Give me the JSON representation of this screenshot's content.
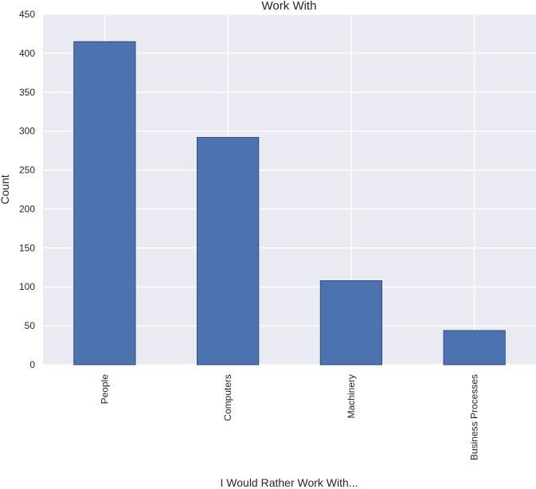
{
  "chart_data": {
    "type": "bar",
    "title": "Work With",
    "xlabel": "I Would Rather Work With...",
    "ylabel": "Count",
    "categories": [
      "People",
      "Computers",
      "Machinery",
      "Business Processes"
    ],
    "values": [
      415,
      292,
      108,
      44
    ],
    "ylim": [
      0,
      450
    ],
    "yticks": [
      0,
      50,
      100,
      150,
      200,
      250,
      300,
      350,
      400,
      450
    ],
    "bar_color": "#4c72b0",
    "background_color": "#eaeaf2",
    "grid": true,
    "legend": "none"
  }
}
